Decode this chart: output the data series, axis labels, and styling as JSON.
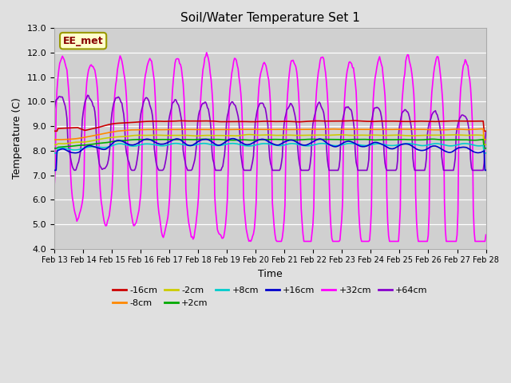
{
  "title": "Soil/Water Temperature Set 1",
  "xlabel": "Time",
  "ylabel": "Temperature (C)",
  "ylim": [
    4.0,
    13.0
  ],
  "yticks": [
    4.0,
    5.0,
    6.0,
    7.0,
    8.0,
    9.0,
    10.0,
    11.0,
    12.0,
    13.0
  ],
  "background_color": "#e0e0e0",
  "axes_bg_color": "#d0d0d0",
  "series_order": [
    "-16cm",
    "-8cm",
    "-2cm",
    "+2cm",
    "+8cm",
    "+16cm",
    "+32cm",
    "+64cm"
  ],
  "series": {
    "-16cm": {
      "color": "#cc0000",
      "lw": 1.2
    },
    "-8cm": {
      "color": "#ff8800",
      "lw": 1.2
    },
    "-2cm": {
      "color": "#cccc00",
      "lw": 1.2
    },
    "+2cm": {
      "color": "#00aa00",
      "lw": 1.2
    },
    "+8cm": {
      "color": "#00cccc",
      "lw": 1.2
    },
    "+16cm": {
      "color": "#0000cc",
      "lw": 1.2
    },
    "+32cm": {
      "color": "#ff00ff",
      "lw": 1.2
    },
    "+64cm": {
      "color": "#8800cc",
      "lw": 1.2
    }
  },
  "annotation": {
    "text": "EE_met",
    "fontsize": 9,
    "text_color": "#880000",
    "bg_color": "#ffffcc",
    "border_color": "#999900"
  },
  "legend_ncol": 6,
  "tick_fontsize": 7,
  "ytick_fontsize": 8,
  "title_fontsize": 11
}
